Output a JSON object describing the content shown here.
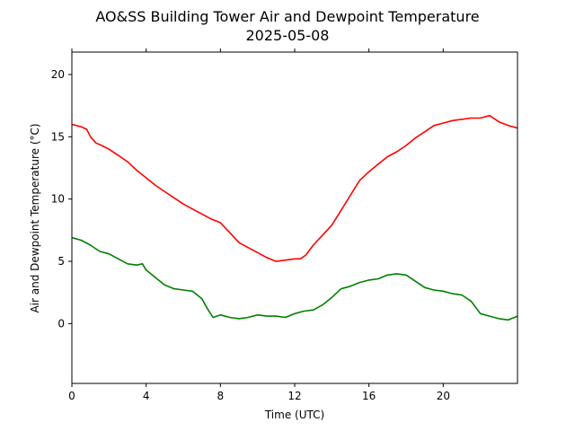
{
  "chart_data": {
    "type": "line",
    "title_line1": "AO&SS Building Tower Air and Dewpoint Temperature",
    "title_line2": "2025-05-08",
    "xlabel": "Time (UTC)",
    "ylabel": "Air and Dewpoint Temperature (°C)",
    "xlim": [
      0,
      24
    ],
    "ylim": [
      -4.8,
      21.8
    ],
    "xticks": [
      0,
      4,
      8,
      12,
      16,
      20
    ],
    "xtick_labels": [
      "0",
      "4",
      "8",
      "12",
      "16",
      "20"
    ],
    "yticks": [
      0,
      5,
      10,
      15,
      20
    ],
    "ytick_labels": [
      "0",
      "5",
      "10",
      "15",
      "20"
    ],
    "grid": false,
    "series": [
      {
        "color": "#ff0000",
        "x": [
          0,
          0.5,
          0.8,
          1.0,
          1.3,
          1.6,
          2.0,
          2.5,
          3.0,
          3.5,
          4.0,
          4.5,
          5.0,
          5.5,
          6.0,
          6.5,
          7.0,
          7.5,
          8.0,
          8.5,
          9.0,
          9.5,
          10.0,
          10.5,
          11.0,
          11.5,
          12.0,
          12.3,
          12.6,
          13.0,
          13.5,
          14.0,
          14.5,
          15.0,
          15.5,
          16.0,
          16.5,
          17.0,
          17.5,
          18.0,
          18.5,
          19.0,
          19.5,
          20.0,
          20.5,
          21.0,
          21.5,
          22.0,
          22.5,
          23.0,
          23.5,
          24.0
        ],
        "y": [
          16.0,
          15.8,
          15.6,
          15.0,
          14.5,
          14.3,
          14.0,
          13.5,
          13.0,
          12.3,
          11.7,
          11.1,
          10.6,
          10.1,
          9.6,
          9.2,
          8.8,
          8.4,
          8.1,
          7.3,
          6.5,
          6.1,
          5.7,
          5.3,
          5.0,
          5.1,
          5.2,
          5.2,
          5.5,
          6.3,
          7.1,
          7.9,
          9.1,
          10.3,
          11.5,
          12.2,
          12.8,
          13.4,
          13.8,
          14.3,
          14.9,
          15.4,
          15.9,
          16.1,
          16.3,
          16.4,
          16.5,
          16.5,
          16.7,
          16.2,
          15.9,
          15.7
        ]
      },
      {
        "color": "#008000",
        "x": [
          0,
          0.5,
          1.0,
          1.5,
          2.0,
          2.5,
          3.0,
          3.5,
          3.8,
          4.0,
          4.5,
          5.0,
          5.5,
          6.0,
          6.5,
          7.0,
          7.3,
          7.6,
          8.0,
          8.5,
          9.0,
          9.5,
          10.0,
          10.5,
          11.0,
          11.5,
          12.0,
          12.5,
          13.0,
          13.5,
          14.0,
          14.5,
          15.0,
          15.5,
          16.0,
          16.5,
          17.0,
          17.5,
          18.0,
          18.5,
          19.0,
          19.5,
          20.0,
          20.5,
          21.0,
          21.5,
          22.0,
          22.5,
          23.0,
          23.5,
          24.0
        ],
        "y": [
          6.9,
          6.7,
          6.3,
          5.8,
          5.6,
          5.2,
          4.8,
          4.7,
          4.8,
          4.3,
          3.7,
          3.1,
          2.8,
          2.7,
          2.6,
          2.0,
          1.2,
          0.5,
          0.7,
          0.5,
          0.4,
          0.5,
          0.7,
          0.6,
          0.6,
          0.5,
          0.8,
          1.0,
          1.1,
          1.5,
          2.1,
          2.8,
          3.0,
          3.3,
          3.5,
          3.6,
          3.9,
          4.0,
          3.9,
          3.4,
          2.9,
          2.7,
          2.6,
          2.4,
          2.3,
          1.8,
          0.8,
          0.6,
          0.4,
          0.3,
          0.6
        ]
      }
    ]
  }
}
